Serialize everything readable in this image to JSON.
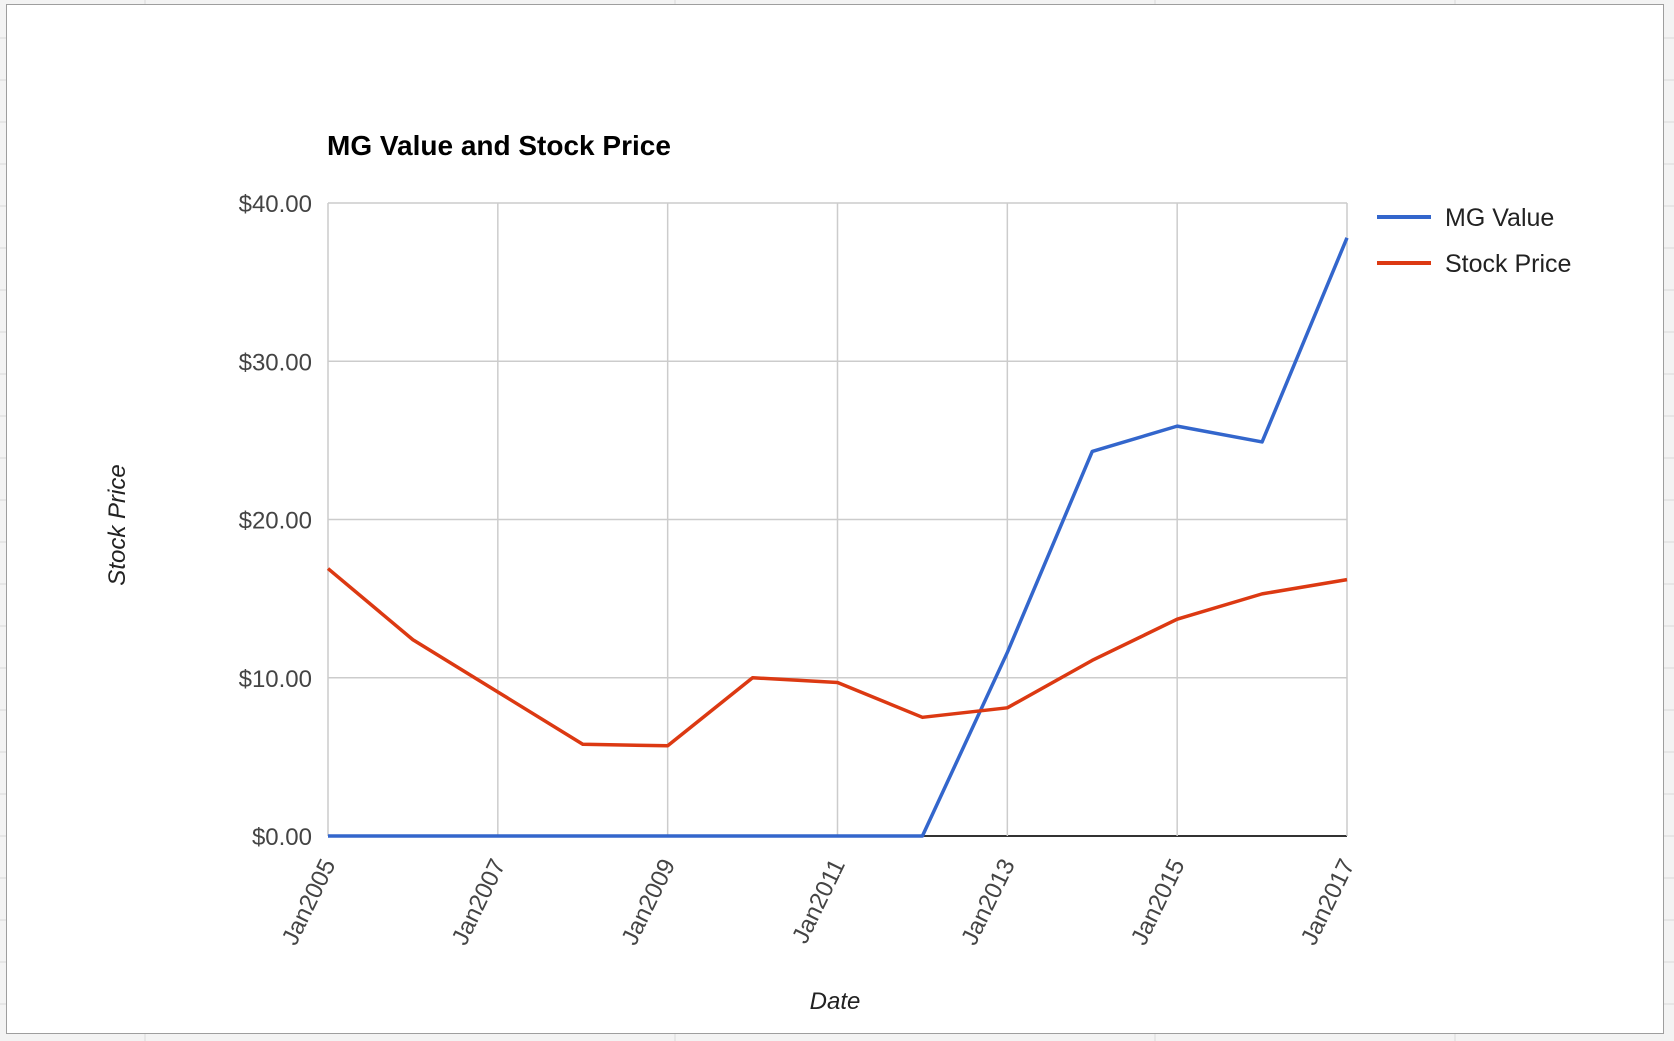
{
  "chart_data": {
    "type": "line",
    "title": "MG Value and Stock Price",
    "xlabel": "Date",
    "ylabel": "Stock Price",
    "x": [
      "2005-01",
      "2006-01",
      "2007-01",
      "2008-01",
      "2009-01",
      "2010-01",
      "2011-01",
      "2012-01",
      "2013-01",
      "2014-01",
      "2015-01",
      "2016-01",
      "2017-01"
    ],
    "x_tick_labels": [
      "Jan2005",
      "Jan2007",
      "Jan2009",
      "Jan2011",
      "Jan2013",
      "Jan2015",
      "Jan2017"
    ],
    "y_tick_labels": [
      "$0.00",
      "$10.00",
      "$20.00",
      "$30.00",
      "$40.00"
    ],
    "y_ticks": [
      0,
      10,
      20,
      30,
      40
    ],
    "ylim": [
      0,
      40
    ],
    "grid": true,
    "legend_position": "right",
    "series": [
      {
        "name": "MG Value",
        "color": "#3366cc",
        "values": [
          0,
          0,
          0,
          0,
          0,
          0,
          0,
          0,
          11.6,
          24.3,
          25.9,
          24.9,
          37.8
        ]
      },
      {
        "name": "Stock Price",
        "color": "#dc3912",
        "values": [
          16.9,
          12.4,
          9.1,
          5.8,
          5.7,
          10.0,
          9.7,
          7.5,
          8.1,
          11.1,
          13.7,
          15.3,
          16.2
        ]
      }
    ]
  }
}
